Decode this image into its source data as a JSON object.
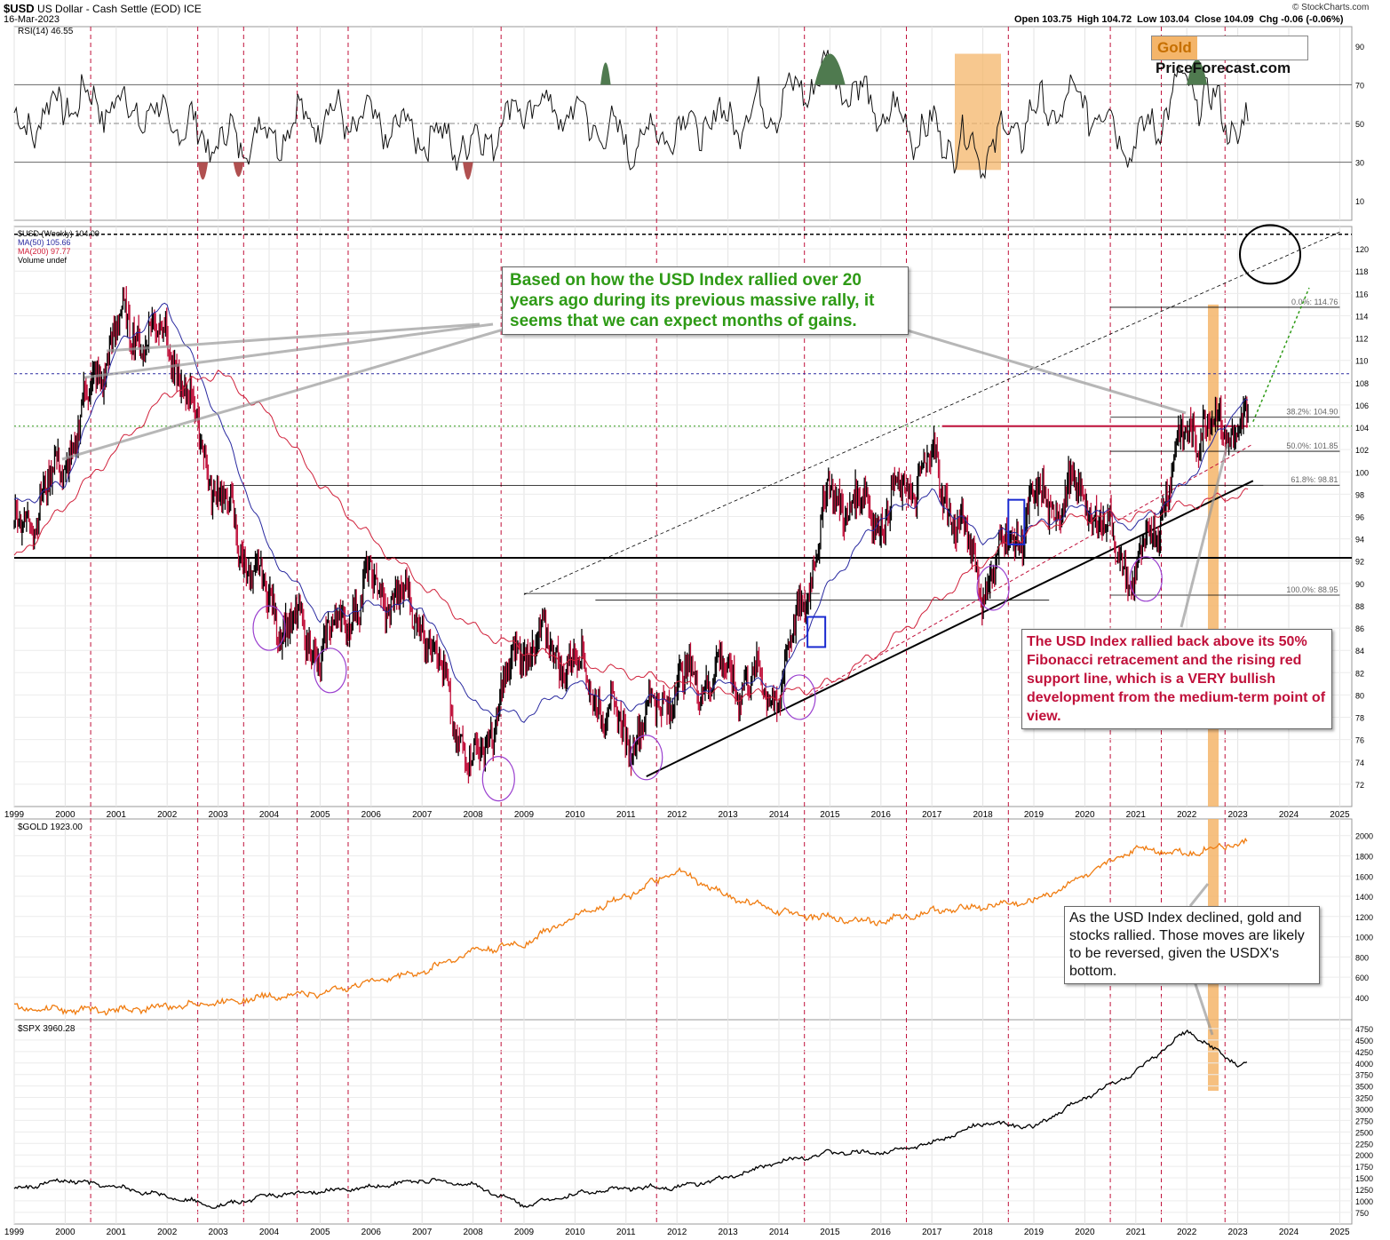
{
  "header": {
    "symbol": "$USD",
    "name": "US Dollar - Cash Settle (EOD)",
    "exchange": "ICE",
    "date": "16-Mar-2023",
    "copyright": "© StockCharts.com",
    "ohlc": "Open 103.75  High 104.72  Low 103.04  Close 104.09  Chg -0.06 (-0.06%)"
  },
  "logo": {
    "part1": "Gold",
    "part2": "PriceForecast.com"
  },
  "legends": {
    "rsi": "RSI(14) 46.55",
    "usd": "$USD (Weekly) 104.09",
    "ma50": "MA(50) 105.66",
    "ma200": "MA(200) 97.77",
    "volume": "Volume undef",
    "gold": "$GOLD 1923.00",
    "spx": "$SPX 3960.28"
  },
  "notes": {
    "green": "Based on how the USD Index rallied over 20 years ago during its previous massive rally, it seems that we can expect months of gains.",
    "red": "The USD Index rallied back above its 50% Fibonacci retracement and the rising red support line, which is a VERY bullish development from the medium-term point of view.",
    "black": "As the USD Index declined, gold and stocks rallied. Those moves are likely to be reversed, given the USDX's bottom."
  },
  "fib_labels": [
    "0.0%: 114.76",
    "38.2%: 104.90",
    "50.0%: 101.85",
    "61.8%: 98.81",
    "100.0%: 88.95"
  ],
  "colors": {
    "price": "#000000",
    "down_bar": "#c0103a",
    "ma50": "#2a2aa0",
    "ma200": "#d0203a",
    "gold": "#f07c10",
    "spx": "#000000",
    "cycle_line": "#c0103a",
    "highlight": "#f4b56a",
    "circle": "#9a3fcf",
    "rsi_fill_high": "#4f7a4f",
    "rsi_fill_low": "#b05050"
  },
  "chart_data": [
    {
      "type": "line",
      "panel": "RSI",
      "title": "RSI(14) 46.55",
      "ylim": [
        0,
        100
      ],
      "ytick_labels": [
        "10",
        "30",
        "50",
        "70",
        "90"
      ],
      "reference_lines": [
        30,
        50,
        70
      ],
      "x": [
        "1999",
        "2000",
        "2001",
        "2002",
        "2003",
        "2004",
        "2005",
        "2006",
        "2007",
        "2008",
        "2009",
        "2010",
        "2011",
        "2012",
        "2013",
        "2014",
        "2015",
        "2016",
        "2017",
        "2018",
        "2019",
        "2020",
        "2021",
        "2022",
        "2023"
      ],
      "series": [
        {
          "name": "RSI(14)",
          "values": [
            45,
            62,
            60,
            52,
            40,
            45,
            55,
            50,
            45,
            38,
            60,
            55,
            40,
            48,
            52,
            60,
            78,
            55,
            45,
            35,
            55,
            62,
            38,
            72,
            47
          ]
        }
      ]
    },
    {
      "type": "line",
      "panel": "USD",
      "title": "$USD (Weekly) 104.09",
      "ylim": [
        70,
        122
      ],
      "ytick_labels": [
        "72",
        "74",
        "76",
        "78",
        "80",
        "82",
        "84",
        "86",
        "88",
        "90",
        "92",
        "94",
        "96",
        "98",
        "100",
        "102",
        "104",
        "106",
        "108",
        "110",
        "112",
        "114",
        "116",
        "118",
        "120"
      ],
      "x": [
        "1999",
        "2000",
        "2001",
        "2002",
        "2003",
        "2004",
        "2005",
        "2006",
        "2007",
        "2008",
        "2009",
        "2010",
        "2011",
        "2012",
        "2013",
        "2014",
        "2015",
        "2016",
        "2017",
        "2018",
        "2019",
        "2020",
        "2021",
        "2022",
        "2023"
      ],
      "series": [
        {
          "name": "$USD",
          "values": [
            94,
            101,
            113,
            112,
            98,
            88,
            84,
            90,
            87,
            73,
            85,
            83,
            76,
            81,
            82,
            80,
            98,
            96,
            101,
            90,
            97,
            98,
            90,
            104,
            104
          ]
        },
        {
          "name": "MA(50)",
          "values": [
            97,
            99,
            111,
            115,
            105,
            93,
            87,
            88,
            88,
            79,
            78,
            81,
            79,
            80,
            81,
            81,
            90,
            96,
            98,
            94,
            95,
            97,
            95,
            99,
            106
          ]
        },
        {
          "name": "MA(200)",
          "values": [
            92,
            97,
            102,
            107,
            109,
            105,
            99,
            94,
            90,
            86,
            84,
            83,
            82,
            81,
            80,
            80,
            81,
            84,
            88,
            92,
            95,
            96,
            96,
            97,
            98
          ]
        }
      ]
    },
    {
      "type": "line",
      "panel": "GOLD",
      "title": "$GOLD 1923.00",
      "ytick_labels": [
        "400",
        "600",
        "800",
        "1000",
        "1200",
        "1400",
        "1600",
        "1800",
        "2000"
      ],
      "x": [
        "1999",
        "2000",
        "2001",
        "2002",
        "2003",
        "2004",
        "2005",
        "2006",
        "2007",
        "2008",
        "2009",
        "2010",
        "2011",
        "2012",
        "2013",
        "2014",
        "2015",
        "2016",
        "2017",
        "2018",
        "2019",
        "2020",
        "2021",
        "2022",
        "2023"
      ],
      "series": [
        {
          "name": "$GOLD",
          "values": [
            290,
            280,
            270,
            310,
            350,
            410,
            440,
            560,
            650,
            860,
            930,
            1200,
            1400,
            1650,
            1400,
            1250,
            1180,
            1150,
            1250,
            1300,
            1350,
            1600,
            1880,
            1820,
            1923
          ]
        }
      ]
    },
    {
      "type": "line",
      "panel": "SPX",
      "title": "$SPX 3960.28",
      "ytick_labels": [
        "750",
        "1000",
        "1250",
        "1500",
        "1750",
        "2000",
        "2250",
        "2500",
        "2750",
        "3000",
        "3250",
        "3500",
        "3750",
        "4000",
        "4250",
        "4500",
        "4750"
      ],
      "x": [
        "1999",
        "2000",
        "2001",
        "2002",
        "2003",
        "2004",
        "2005",
        "2006",
        "2007",
        "2008",
        "2009",
        "2010",
        "2011",
        "2012",
        "2013",
        "2014",
        "2015",
        "2016",
        "2017",
        "2018",
        "2019",
        "2020",
        "2021",
        "2022",
        "2023"
      ],
      "series": [
        {
          "name": "$SPX",
          "values": [
            1250,
            1450,
            1300,
            1100,
            880,
            1120,
            1200,
            1300,
            1450,
            1350,
            900,
            1150,
            1280,
            1300,
            1500,
            1850,
            2050,
            2050,
            2250,
            2700,
            2600,
            3250,
            3800,
            4700,
            3960
          ]
        }
      ]
    }
  ],
  "year_labels": [
    "1999",
    "2000",
    "2001",
    "2002",
    "2003",
    "2004",
    "2005",
    "2006",
    "2007",
    "2008",
    "2009",
    "2010",
    "2011",
    "2012",
    "2013",
    "2014",
    "2015",
    "2016",
    "2017",
    "2018",
    "2019",
    "2020",
    "2021",
    "2022",
    "2023",
    "2024",
    "2025"
  ],
  "rsi_ticks": [
    "90",
    "70",
    "50",
    "30",
    "10"
  ]
}
